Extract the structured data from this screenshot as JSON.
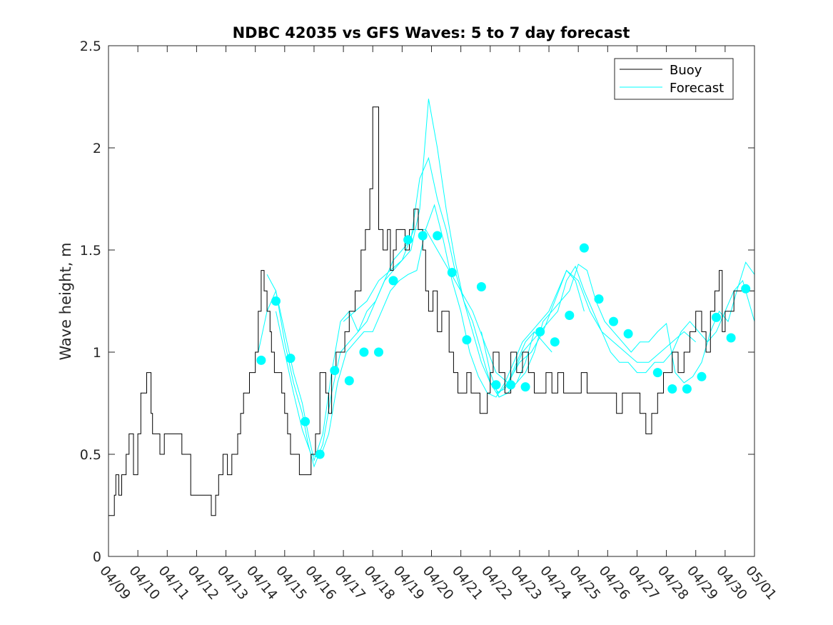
{
  "chart_data": {
    "type": "line",
    "title": "NDBC 42035 vs GFS Waves: 5 to 7 day forecast",
    "xlabel": "",
    "ylabel": "Wave height, m",
    "ylim": [
      0,
      2.5
    ],
    "xlim": [
      0,
      22
    ],
    "x_tick_labels": [
      "04/09",
      "04/10",
      "04/11",
      "04/12",
      "04/13",
      "04/14",
      "04/15",
      "04/16",
      "04/17",
      "04/18",
      "04/19",
      "04/20",
      "04/21",
      "04/22",
      "04/23",
      "04/24",
      "04/25",
      "04/26",
      "04/27",
      "04/28",
      "04/29",
      "04/30",
      "05/01"
    ],
    "y_ticks": [
      0,
      0.5,
      1,
      1.5,
      2,
      2.5
    ],
    "y_tick_labels": [
      "0",
      "0.5",
      "1",
      "1.5",
      "2",
      "2.5"
    ],
    "grid": false,
    "legend_position": "top-right",
    "legend": [
      "Buoy",
      "Forecast"
    ],
    "colors": {
      "buoy": "#000000",
      "forecast": "#00ffff",
      "axes": "#262626"
    },
    "buoy": {
      "name": "Buoy",
      "x": [
        0,
        0.2,
        0.25,
        0.35,
        0.45,
        0.6,
        0.7,
        0.85,
        1.0,
        1.1,
        1.2,
        1.3,
        1.45,
        1.5,
        1.6,
        1.75,
        1.9,
        2.0,
        2.1,
        2.5,
        2.8,
        3.2,
        3.5,
        3.65,
        3.75,
        3.9,
        4.05,
        4.2,
        4.4,
        4.5,
        4.6,
        4.8,
        5.0,
        5.1,
        5.2,
        5.3,
        5.4,
        5.5,
        5.55,
        5.65,
        5.75,
        5.9,
        6.0,
        6.1,
        6.2,
        6.3,
        6.5,
        6.75,
        6.9,
        7.05,
        7.2,
        7.4,
        7.5,
        7.6,
        7.75,
        7.9,
        8.05,
        8.2,
        8.4,
        8.6,
        8.75,
        8.9,
        9.0,
        9.2,
        9.35,
        9.5,
        9.6,
        9.7,
        9.8,
        9.9,
        10.1,
        10.25,
        10.4,
        10.55,
        10.7,
        10.8,
        10.9,
        11.05,
        11.2,
        11.35,
        11.5,
        11.6,
        11.75,
        11.9,
        12.05,
        12.2,
        12.35,
        12.5,
        12.65,
        12.8,
        12.9,
        13.0,
        13.1,
        13.3,
        13.5,
        13.7,
        13.9,
        14.1,
        14.3,
        14.5,
        14.7,
        14.9,
        15.1,
        15.3,
        15.5,
        15.7,
        15.9,
        16.1,
        16.3,
        16.5,
        16.7,
        16.9,
        17.1,
        17.3,
        17.5,
        17.7,
        17.9,
        18.1,
        18.3,
        18.5,
        18.7,
        18.9,
        19.05,
        19.2,
        19.4,
        19.6,
        19.8,
        20.0,
        20.1,
        20.2,
        20.35,
        20.5,
        20.65,
        20.8,
        20.9,
        21.0,
        21.15,
        21.3,
        21.5,
        21.7,
        21.9,
        22.0
      ],
      "y": [
        0.2,
        0.3,
        0.4,
        0.3,
        0.4,
        0.5,
        0.6,
        0.4,
        0.6,
        0.8,
        0.8,
        0.9,
        0.7,
        0.6,
        0.6,
        0.5,
        0.6,
        0.6,
        0.6,
        0.5,
        0.3,
        0.3,
        0.2,
        0.3,
        0.4,
        0.5,
        0.4,
        0.5,
        0.6,
        0.7,
        0.8,
        0.9,
        1.0,
        1.2,
        1.4,
        1.3,
        1.2,
        1.1,
        1.0,
        0.9,
        0.9,
        0.8,
        0.7,
        0.6,
        0.5,
        0.5,
        0.4,
        0.4,
        0.5,
        0.6,
        0.9,
        0.8,
        0.7,
        0.9,
        1.0,
        1.0,
        1.1,
        1.2,
        1.3,
        1.5,
        1.6,
        1.8,
        2.2,
        1.6,
        1.5,
        1.6,
        1.4,
        1.5,
        1.6,
        1.6,
        1.5,
        1.6,
        1.7,
        1.6,
        1.5,
        1.3,
        1.2,
        1.3,
        1.1,
        1.2,
        1.2,
        1.0,
        0.9,
        0.8,
        0.8,
        0.9,
        0.8,
        0.8,
        0.7,
        0.7,
        0.8,
        0.9,
        1.0,
        0.9,
        0.8,
        1.0,
        0.9,
        1.0,
        0.9,
        0.8,
        0.8,
        0.9,
        0.8,
        0.9,
        0.8,
        0.8,
        0.8,
        0.9,
        0.8,
        0.8,
        0.8,
        0.8,
        0.8,
        0.7,
        0.8,
        0.8,
        0.8,
        0.7,
        0.6,
        0.7,
        0.8,
        0.9,
        0.9,
        1.0,
        0.9,
        1.0,
        1.1,
        1.2,
        1.2,
        1.1,
        1.0,
        1.2,
        1.3,
        1.4,
        1.1,
        1.2,
        1.2,
        1.3,
        1.3,
        1.3,
        1.3,
        1.3
      ]
    },
    "forecast_points": {
      "name": "Forecast",
      "x": [
        5.2,
        5.7,
        6.2,
        6.7,
        7.2,
        7.7,
        8.2,
        8.7,
        9.2,
        9.7,
        10.2,
        10.7,
        11.2,
        11.7,
        12.2,
        12.7,
        13.2,
        13.7,
        14.2,
        14.7,
        15.2,
        15.7,
        16.2,
        16.7,
        17.2,
        17.7,
        18.2,
        18.7,
        19.2,
        19.7,
        20.2,
        20.7,
        21.2,
        21.7
      ],
      "y": [
        0.96,
        1.25,
        0.97,
        0.66,
        0.5,
        0.91,
        0.86,
        1.0,
        1.0,
        1.35,
        1.55,
        1.57,
        1.57,
        1.39,
        1.06,
        1.32,
        0.84,
        0.84,
        0.83,
        1.1,
        1.05,
        1.18,
        1.51,
        1.26,
        1.15,
        1.09,
        null,
        0.9,
        0.82,
        0.82,
        0.88,
        1.17,
        1.07,
        1.31
      ]
    },
    "forecast_runs": [
      {
        "x": [
          5.1,
          5.4,
          5.7,
          6.0,
          6.3,
          6.6,
          6.8,
          7.0,
          7.3,
          7.6,
          7.9,
          8.2,
          8.5,
          8.8,
          9.1,
          9.4,
          9.7,
          10.0,
          10.3,
          10.6,
          10.9,
          11.2,
          11.5,
          11.8,
          12.1,
          12.4,
          12.7,
          13.0,
          13.3,
          13.6,
          13.9,
          14.2,
          14.5
        ],
        "y": [
          1.0,
          1.2,
          1.3,
          1.1,
          0.9,
          0.75,
          0.6,
          0.47,
          0.6,
          0.9,
          1.15,
          1.2,
          1.1,
          1.2,
          1.25,
          1.35,
          1.45,
          1.5,
          1.55,
          1.85,
          1.95,
          1.75,
          1.6,
          1.4,
          1.25,
          1.15,
          1.0,
          0.85,
          0.78,
          0.8,
          0.85,
          0.95,
          1.1
        ]
      },
      {
        "x": [
          5.4,
          5.7,
          6.0,
          6.3,
          6.6,
          6.8,
          7.0,
          7.3,
          7.6,
          7.9,
          8.2,
          8.5,
          8.8,
          9.1,
          9.4,
          9.7,
          10.0,
          10.3,
          10.6,
          10.9,
          11.2,
          11.5,
          11.8,
          12.1,
          12.4,
          12.7,
          13.0,
          13.3,
          13.6,
          13.9,
          14.2,
          14.5,
          14.8,
          15.1
        ],
        "y": [
          1.38,
          1.3,
          1.05,
          0.85,
          0.7,
          0.55,
          0.44,
          0.55,
          0.8,
          1.0,
          1.05,
          1.1,
          1.15,
          1.25,
          1.35,
          1.4,
          1.45,
          1.5,
          1.7,
          2.24,
          2.0,
          1.7,
          1.45,
          1.25,
          1.1,
          0.95,
          0.85,
          0.8,
          0.85,
          0.95,
          1.05,
          1.1,
          1.05,
          1.0
        ]
      },
      {
        "x": [
          5.7,
          6.0,
          6.3,
          6.6,
          6.9,
          7.2,
          7.5,
          7.8,
          8.1,
          8.4,
          8.7,
          9.0,
          9.3,
          9.6,
          9.9,
          10.2,
          10.5,
          10.8,
          11.1,
          11.4,
          11.7,
          12.0,
          12.3,
          12.6,
          12.9,
          13.2,
          13.5,
          13.8,
          14.1,
          14.4,
          14.7,
          15.0,
          15.3,
          15.6,
          15.9,
          16.2
        ],
        "y": [
          1.2,
          1.0,
          0.8,
          0.62,
          0.5,
          0.48,
          0.6,
          0.85,
          1.0,
          1.05,
          1.1,
          1.1,
          1.2,
          1.3,
          1.35,
          1.38,
          1.4,
          1.6,
          1.72,
          1.55,
          1.35,
          1.2,
          1.0,
          0.88,
          0.8,
          0.78,
          0.85,
          0.95,
          1.05,
          1.1,
          1.15,
          1.2,
          1.3,
          1.4,
          1.35,
          1.2
        ]
      },
      {
        "x": [
          8.0,
          8.4,
          8.8,
          9.2,
          9.6,
          10.0,
          10.4,
          10.8,
          11.2,
          11.6,
          12.0,
          12.4,
          12.8,
          13.2,
          13.6,
          14.0,
          14.4,
          14.8,
          15.2,
          15.6,
          16.0,
          16.4,
          16.8,
          17.2,
          17.6,
          18.0,
          18.4,
          18.8,
          19.2,
          19.6,
          20.0
        ],
        "y": [
          1.15,
          1.2,
          1.25,
          1.35,
          1.4,
          1.45,
          1.6,
          1.6,
          1.5,
          1.4,
          1.3,
          1.2,
          1.05,
          0.9,
          0.85,
          0.95,
          1.0,
          1.1,
          1.25,
          1.4,
          1.35,
          1.2,
          1.1,
          1.05,
          1.0,
          0.95,
          0.95,
          1.0,
          1.05,
          1.1,
          1.05
        ]
      },
      {
        "x": [
          12.7,
          13.0,
          13.3,
          13.6,
          13.9,
          14.2,
          14.5,
          14.8,
          15.1,
          15.4,
          15.7,
          16.0,
          16.3,
          16.6,
          16.9,
          17.2,
          17.5,
          17.8,
          18.1,
          18.4,
          18.7,
          19.0,
          19.3,
          19.6,
          19.9,
          20.2,
          20.5,
          20.8,
          21.1,
          21.4,
          21.7,
          22.0
        ],
        "y": [
          1.1,
          0.9,
          0.78,
          0.8,
          0.85,
          0.9,
          1.0,
          1.15,
          1.2,
          1.25,
          1.3,
          1.43,
          1.4,
          1.25,
          1.15,
          1.1,
          1.05,
          1.0,
          1.05,
          1.05,
          1.1,
          1.14,
          0.9,
          0.85,
          0.88,
          0.95,
          1.1,
          1.2,
          1.15,
          1.3,
          1.44,
          1.38
        ]
      },
      {
        "x": [
          13.2,
          13.5,
          13.8,
          14.1,
          14.4,
          14.7,
          15.0,
          15.3,
          15.6,
          15.9,
          16.2,
          16.5,
          16.8,
          17.1,
          17.4,
          17.7,
          18.0,
          18.3,
          18.6,
          18.9,
          19.2,
          19.5,
          19.8,
          20.1,
          20.4,
          20.7,
          21.0,
          21.3,
          21.6,
          21.9,
          22.0
        ],
        "y": [
          0.8,
          0.82,
          0.9,
          1.0,
          1.05,
          1.1,
          1.15,
          1.2,
          1.35,
          1.42,
          1.3,
          1.2,
          1.1,
          1.0,
          0.95,
          0.95,
          0.9,
          0.9,
          0.95,
          0.95,
          1.0,
          1.1,
          1.15,
          1.1,
          1.05,
          1.1,
          1.2,
          1.3,
          1.35,
          1.2,
          1.15
        ]
      }
    ]
  }
}
